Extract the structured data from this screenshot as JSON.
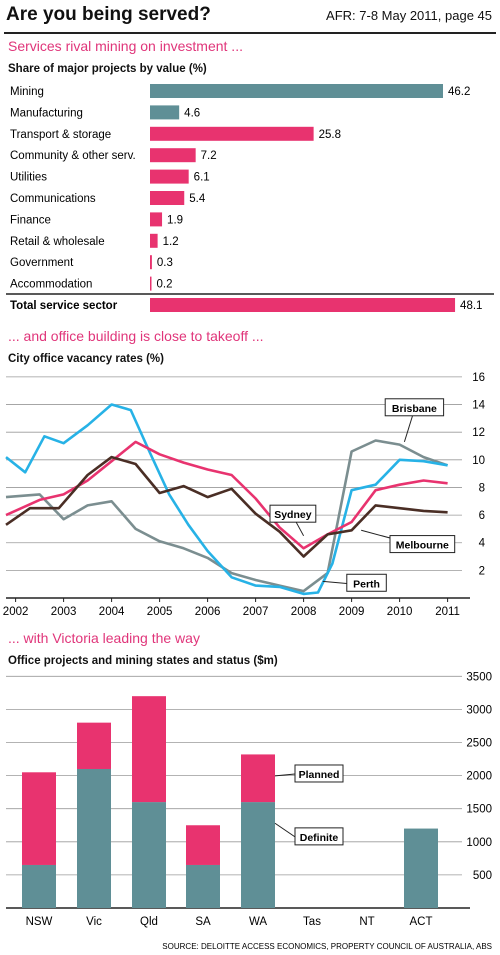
{
  "header": {
    "title": "Are you being served?",
    "source": "AFR: 7-8 May 2011, page 45"
  },
  "colors": {
    "pink": "#e8336f",
    "teal": "#5f8f96",
    "cyan": "#27b2e6",
    "brown": "#4a2e25",
    "grey": "#7b8e90"
  },
  "footer": {
    "source": "SOURCE: DELOITTE ACCESS ECONOMICS, PROPERTY COUNCIL OF AUSTRALIA, ABS"
  },
  "chart_data": [
    {
      "type": "bar",
      "orientation": "horizontal",
      "title": "Services rival mining on investment ...",
      "subtitle": "Share of major projects by value (%)",
      "categories": [
        "Mining",
        "Manufacturing",
        "Transport & storage",
        "Community & other serv.",
        "Utilities",
        "Communications",
        "Finance",
        "Retail & wholesale",
        "Government",
        "Accommodation",
        "Total service sector"
      ],
      "values": [
        46.2,
        4.6,
        25.8,
        7.2,
        6.1,
        5.4,
        1.9,
        1.2,
        0.3,
        0.2,
        48.1
      ],
      "value_labels": [
        "46.2",
        "4.6",
        "25.8",
        "7.2",
        "6.1",
        "5.4",
        "1.9",
        "1.2",
        "0.3",
        "0.2",
        "48.1"
      ],
      "bar_colors": [
        "teal",
        "teal",
        "pink",
        "pink",
        "pink",
        "pink",
        "pink",
        "pink",
        "pink",
        "pink",
        "pink"
      ],
      "bold_last": true
    },
    {
      "type": "line",
      "title": "... and office building is close to takeoff ...",
      "subtitle": "City office vacancy rates (%)",
      "x_ticks": [
        "2002",
        "2003",
        "2004",
        "2005",
        "2006",
        "2007",
        "2008",
        "2009",
        "2010",
        "2011"
      ],
      "xlim": [
        2001.8,
        2011.3
      ],
      "y_ticks": [
        "2",
        "4",
        "6",
        "8",
        "10",
        "12",
        "14",
        "16"
      ],
      "ylim": [
        0,
        16.5
      ],
      "grid": true,
      "series": [
        {
          "name": "Brisbane",
          "color": "grey",
          "points": [
            [
              2001.8,
              7.3
            ],
            [
              2002.5,
              7.5
            ],
            [
              2003.0,
              5.7
            ],
            [
              2003.5,
              6.7
            ],
            [
              2004.0,
              7.0
            ],
            [
              2004.5,
              5.0
            ],
            [
              2005.0,
              4.1
            ],
            [
              2005.5,
              3.6
            ],
            [
              2006.0,
              2.9
            ],
            [
              2006.5,
              1.8
            ],
            [
              2007.0,
              1.3
            ],
            [
              2007.5,
              0.9
            ],
            [
              2008.0,
              0.5
            ],
            [
              2008.5,
              1.8
            ],
            [
              2009.0,
              10.6
            ],
            [
              2009.5,
              11.4
            ],
            [
              2010.0,
              11.1
            ],
            [
              2010.5,
              10.2
            ],
            [
              2011.0,
              9.6
            ]
          ]
        },
        {
          "name": "Perth",
          "color": "cyan",
          "points": [
            [
              2001.8,
              10.2
            ],
            [
              2002.2,
              9.1
            ],
            [
              2002.6,
              11.7
            ],
            [
              2003.0,
              11.2
            ],
            [
              2003.5,
              12.5
            ],
            [
              2004.0,
              14.0
            ],
            [
              2004.4,
              13.6
            ],
            [
              2004.8,
              10.5
            ],
            [
              2005.2,
              7.5
            ],
            [
              2005.6,
              5.3
            ],
            [
              2006.0,
              3.4
            ],
            [
              2006.5,
              1.5
            ],
            [
              2007.0,
              0.9
            ],
            [
              2007.5,
              0.8
            ],
            [
              2008.0,
              0.3
            ],
            [
              2008.3,
              0.4
            ],
            [
              2008.6,
              2.5
            ],
            [
              2009.0,
              7.8
            ],
            [
              2009.5,
              8.2
            ],
            [
              2010.0,
              10.0
            ],
            [
              2010.5,
              9.9
            ],
            [
              2011.0,
              9.6
            ]
          ]
        },
        {
          "name": "Sydney",
          "color": "pink",
          "points": [
            [
              2001.8,
              6.0
            ],
            [
              2002.5,
              7.1
            ],
            [
              2003.0,
              7.5
            ],
            [
              2003.5,
              8.5
            ],
            [
              2004.0,
              9.9
            ],
            [
              2004.5,
              11.3
            ],
            [
              2005.0,
              10.4
            ],
            [
              2005.5,
              9.8
            ],
            [
              2006.0,
              9.3
            ],
            [
              2006.5,
              8.9
            ],
            [
              2007.0,
              7.2
            ],
            [
              2007.5,
              5.1
            ],
            [
              2008.0,
              3.6
            ],
            [
              2008.5,
              4.6
            ],
            [
              2009.0,
              5.5
            ],
            [
              2009.5,
              7.8
            ],
            [
              2010.0,
              8.2
            ],
            [
              2010.5,
              8.5
            ],
            [
              2011.0,
              8.3
            ]
          ]
        },
        {
          "name": "Melbourne",
          "color": "brown",
          "points": [
            [
              2001.8,
              5.3
            ],
            [
              2002.3,
              6.5
            ],
            [
              2002.9,
              6.5
            ],
            [
              2003.5,
              8.9
            ],
            [
              2004.0,
              10.2
            ],
            [
              2004.5,
              9.7
            ],
            [
              2005.0,
              7.6
            ],
            [
              2005.5,
              8.1
            ],
            [
              2006.0,
              7.3
            ],
            [
              2006.5,
              7.9
            ],
            [
              2007.0,
              6.1
            ],
            [
              2007.5,
              4.8
            ],
            [
              2008.0,
              3.0
            ],
            [
              2008.5,
              4.6
            ],
            [
              2009.0,
              4.9
            ],
            [
              2009.5,
              6.7
            ],
            [
              2010.0,
              6.5
            ],
            [
              2010.5,
              6.3
            ],
            [
              2011.0,
              6.2
            ]
          ]
        }
      ],
      "labels": [
        {
          "text": "Brisbane",
          "series": "Brisbane",
          "at": [
            2009.7,
            14.2
          ],
          "anchor": [
            2010.1,
            11.3
          ]
        },
        {
          "text": "Sydney",
          "series": "Sydney",
          "at": [
            2007.3,
            6.5
          ],
          "anchor": [
            2008.0,
            4.5
          ]
        },
        {
          "text": "Melbourne",
          "series": "Melbourne",
          "at": [
            2009.8,
            4.3
          ],
          "anchor": [
            2009.2,
            4.9
          ]
        },
        {
          "text": "Perth",
          "series": "Perth",
          "at": [
            2008.9,
            1.5
          ],
          "anchor": [
            2008.4,
            1.2
          ]
        }
      ]
    },
    {
      "type": "bar",
      "stacked": true,
      "title": "... with Victoria leading the way",
      "subtitle": "Office projects and mining states and status ($m)",
      "categories": [
        "NSW",
        "Vic",
        "Qld",
        "SA",
        "WA",
        "Tas",
        "NT",
        "ACT"
      ],
      "y_ticks": [
        "500",
        "1000",
        "1500",
        "2000",
        "2500",
        "3000",
        "3500"
      ],
      "ylim": [
        0,
        3550
      ],
      "grid": true,
      "series": [
        {
          "name": "Definite",
          "color": "teal",
          "values": [
            650,
            2100,
            1600,
            650,
            1600,
            0,
            0,
            1200
          ]
        },
        {
          "name": "Planned",
          "color": "pink",
          "values": [
            1400,
            700,
            1600,
            600,
            720,
            0,
            0,
            0
          ]
        }
      ],
      "labels": [
        {
          "text": "Planned",
          "series": "Planned"
        },
        {
          "text": "Definite",
          "series": "Definite"
        }
      ]
    }
  ]
}
